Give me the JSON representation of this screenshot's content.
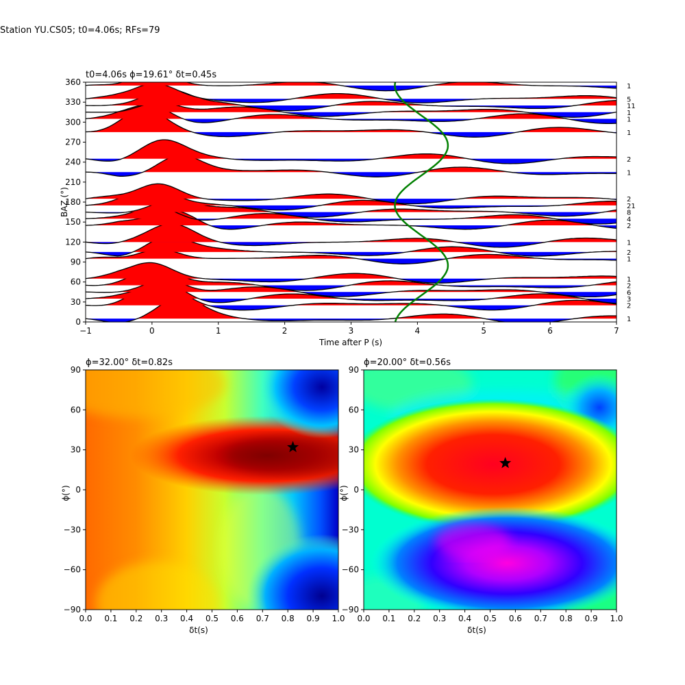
{
  "page_title": "Station YU.CS05; t0=4.06s; RFs=79",
  "colors": {
    "positive": "#ff0000",
    "negative": "#0000ff",
    "trace": "#000000",
    "curve": "#008000"
  },
  "chart_data": [
    {
      "type": "line",
      "panel": "receiver-functions",
      "title": "t0=4.06s ϕ=19.61° δt=0.45s",
      "xlabel": "Time after P (s)",
      "ylabel": "BAZ (°)",
      "xlim": [
        -1,
        7
      ],
      "ylim": [
        0,
        360
      ],
      "xticks": [
        "−1",
        "0",
        "1",
        "2",
        "3",
        "4",
        "5",
        "6",
        "7"
      ],
      "yticks": [
        "0",
        "30",
        "60",
        "90",
        "120",
        "150",
        "180",
        "210",
        "240",
        "270",
        "300",
        "330",
        "360"
      ],
      "fill_positive": "red",
      "fill_negative": "blue",
      "traces": [
        {
          "baz": 5,
          "count": "1",
          "peak_t": 0.4,
          "peak": 0.45
        },
        {
          "baz": 25,
          "count": "2",
          "peak_t": 0.1,
          "peak": 0.5
        },
        {
          "baz": 35,
          "count": "3",
          "peak_t": 0.2,
          "peak": 0.45
        },
        {
          "baz": 45,
          "count": "6",
          "peak_t": 0.2,
          "peak": 0.4
        },
        {
          "baz": 55,
          "count": "2",
          "peak_t": 0.05,
          "peak": 0.45
        },
        {
          "baz": 65,
          "count": "1",
          "peak_t": 0.0,
          "peak": 0.4
        },
        {
          "baz": 95,
          "count": "1",
          "peak_t": 0.1,
          "peak": 0.35
        },
        {
          "baz": 105,
          "count": "2",
          "peak_t": 0.2,
          "peak": 0.4
        },
        {
          "baz": 120,
          "count": "1",
          "peak_t": 0.3,
          "peak": 0.35
        },
        {
          "baz": 145,
          "count": "2",
          "peak_t": 0.4,
          "peak": 0.4
        },
        {
          "baz": 155,
          "count": "4",
          "peak_t": 0.1,
          "peak": 0.4
        },
        {
          "baz": 165,
          "count": "8",
          "peak_t": 0.3,
          "peak": 0.35
        },
        {
          "baz": 175,
          "count": "21",
          "peak_t": 0.0,
          "peak": 0.45
        },
        {
          "baz": 185,
          "count": "2",
          "peak_t": 0.1,
          "peak": 0.45
        },
        {
          "baz": 225,
          "count": "1",
          "peak_t": 0.4,
          "peak": 0.45
        },
        {
          "baz": 245,
          "count": "2",
          "peak_t": 0.15,
          "peak": 0.4
        },
        {
          "baz": 285,
          "count": "1",
          "peak_t": -0.1,
          "peak": 0.45
        },
        {
          "baz": 305,
          "count": "1",
          "peak_t": 0.0,
          "peak": 0.4
        },
        {
          "baz": 315,
          "count": "1",
          "peak_t": 0.1,
          "peak": 0.35
        },
        {
          "baz": 325,
          "count": "11",
          "peak_t": 0.2,
          "peak": 0.4
        },
        {
          "baz": 335,
          "count": "5",
          "peak_t": 0.05,
          "peak": 0.4
        },
        {
          "baz": 355,
          "count": "1",
          "peak_t": 0.0,
          "peak": 0.45
        }
      ],
      "predicted_time_curve": {
        "center_t": 4.06,
        "amplitude_t": 0.4
      }
    },
    {
      "type": "heatmap",
      "panel": "grid-search-left",
      "title": "ϕ=32.00° δt=0.82s",
      "xlabel": "δt(s)",
      "ylabel": "ϕ(°)",
      "xlim": [
        0.0,
        1.0
      ],
      "ylim": [
        -90,
        90
      ],
      "xticks": [
        "0.0",
        "0.1",
        "0.2",
        "0.3",
        "0.4",
        "0.5",
        "0.6",
        "0.7",
        "0.8",
        "0.9",
        "1.0"
      ],
      "yticks": [
        "−90",
        "−60",
        "−30",
        "0",
        "30",
        "60",
        "90"
      ],
      "colormap": "jet",
      "best": {
        "dt": 0.82,
        "phi": 32.0
      }
    },
    {
      "type": "heatmap",
      "panel": "grid-search-right",
      "title": "ϕ=20.00° δt=0.56s",
      "xlabel": "δt(s)",
      "ylabel": "ϕ(°)",
      "xlim": [
        0.0,
        1.0
      ],
      "ylim": [
        -90,
        90
      ],
      "xticks": [
        "0.0",
        "0.1",
        "0.2",
        "0.3",
        "0.4",
        "0.5",
        "0.6",
        "0.7",
        "0.8",
        "0.9",
        "1.0"
      ],
      "yticks": [
        "−90",
        "−60",
        "−30",
        "0",
        "30",
        "60",
        "90"
      ],
      "colormap": "gist_rainbow",
      "best": {
        "dt": 0.56,
        "phi": 20.0
      }
    }
  ]
}
